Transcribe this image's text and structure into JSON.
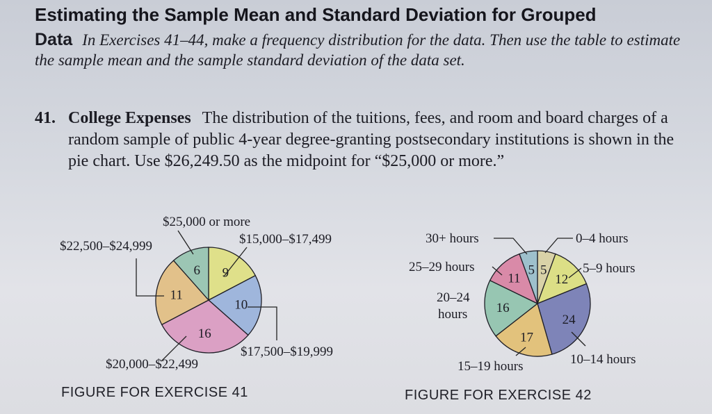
{
  "heading": {
    "line": "Estimating the Sample Mean and Standard Deviation for Grouped",
    "lead": "Data",
    "body": "In Exercises 41–44, make a frequency distribution for the data. Then use the table to estimate the sample mean and the sample standard deviation of the data set."
  },
  "exercise41": {
    "number": "41.",
    "title": "College Expenses",
    "body": "The distribution of the tuitions, fees, and room and board charges of a random sample of public 4-year degree-granting postsecondary institutions is shown in the pie chart. Use $26,249.50 as the midpoint for “$25,000 or more.”"
  },
  "figure41": {
    "caption": "FIGURE FOR EXERCISE 41"
  },
  "figure42": {
    "caption": "FIGURE FOR EXERCISE 42"
  },
  "chart_data": [
    {
      "type": "pie",
      "title": "",
      "slices": [
        {
          "label": "$15,000–$17,499",
          "value": 9,
          "color": "#dfe08a"
        },
        {
          "label": "$17,500–$19,999",
          "value": 10,
          "color": "#9fb6dc"
        },
        {
          "label": "$20,000–$22,499",
          "value": 16,
          "color": "#dba0c4"
        },
        {
          "label": "$22,500–$24,999",
          "value": 11,
          "color": "#e2c18a"
        },
        {
          "label": "$25,000 or more",
          "value": 6,
          "color": "#9cc6b4"
        }
      ]
    },
    {
      "type": "pie",
      "title": "",
      "slices": [
        {
          "label": "0–4 hours",
          "value": 5,
          "color": "#d9d2a8"
        },
        {
          "label": "5–9 hours",
          "value": 12,
          "color": "#dcdf86"
        },
        {
          "label": "10–14 hours",
          "value": 24,
          "color": "#7e84b8"
        },
        {
          "label": "15–19 hours",
          "value": 17,
          "color": "#e2c27c"
        },
        {
          "label": "20–24 hours",
          "value": 16,
          "color": "#97c6b2"
        },
        {
          "label": "25–29 hours",
          "value": 11,
          "color": "#d98aa8"
        },
        {
          "label": "30+ hours",
          "value": 5,
          "color": "#9ec0cc"
        }
      ]
    }
  ]
}
